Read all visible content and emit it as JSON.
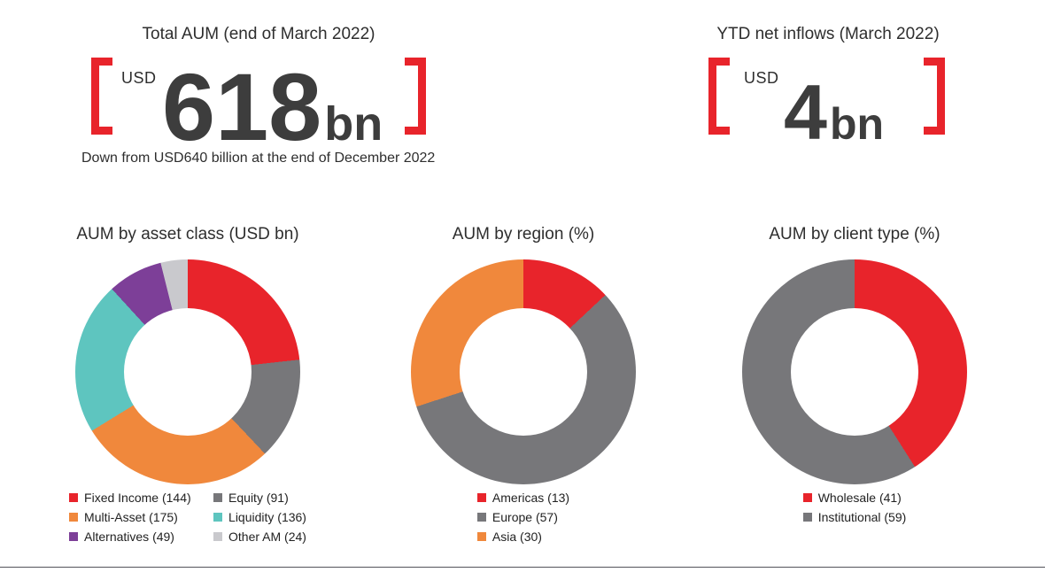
{
  "page": {
    "background": "#ffffff",
    "divider_color": "#53535b",
    "bracket_color": "#e8242b",
    "text_color": "#2e2e2e"
  },
  "kpis": [
    {
      "title": "Total AUM (end of March 2022)",
      "currency_label": "USD",
      "value": "618",
      "unit": "bn",
      "note": "Down from USD640 billion at the end of December 2022"
    },
    {
      "title": "YTD net inflows (March 2022)",
      "currency_label": "USD",
      "value": "4",
      "unit": "bn"
    }
  ],
  "chart_data": [
    {
      "type": "pie",
      "subtype": "donut",
      "title": "AUM by asset class (USD bn)",
      "unit": "USD bn",
      "start_angle_deg": 0,
      "direction": "clockwise",
      "legend_position": "bottom",
      "legend_columns": 2,
      "labels": [
        "Fixed Income",
        "Equity",
        "Multi-Asset",
        "Liquidity",
        "Alternatives",
        "Other AM"
      ],
      "values": [
        144,
        91,
        175,
        136,
        49,
        24
      ],
      "colors": [
        "#e8242b",
        "#77777a",
        "#f0883c",
        "#5ec5bf",
        "#7d3f98",
        "#c9c9cd"
      ]
    },
    {
      "type": "pie",
      "subtype": "donut",
      "title": "AUM by region (%)",
      "unit": "%",
      "start_angle_deg": 0,
      "direction": "clockwise",
      "legend_position": "bottom",
      "legend_columns": 1,
      "labels": [
        "Americas",
        "Europe",
        "Asia"
      ],
      "values": [
        13,
        57,
        30
      ],
      "colors": [
        "#e8242b",
        "#77777a",
        "#f0883c"
      ]
    },
    {
      "type": "pie",
      "subtype": "donut",
      "title": "AUM by client type (%)",
      "unit": "%",
      "start_angle_deg": 0,
      "direction": "clockwise",
      "legend_position": "bottom",
      "legend_columns": 1,
      "labels": [
        "Wholesale",
        "Institutional"
      ],
      "values": [
        41,
        59
      ],
      "colors": [
        "#e8242b",
        "#77777a"
      ]
    }
  ]
}
